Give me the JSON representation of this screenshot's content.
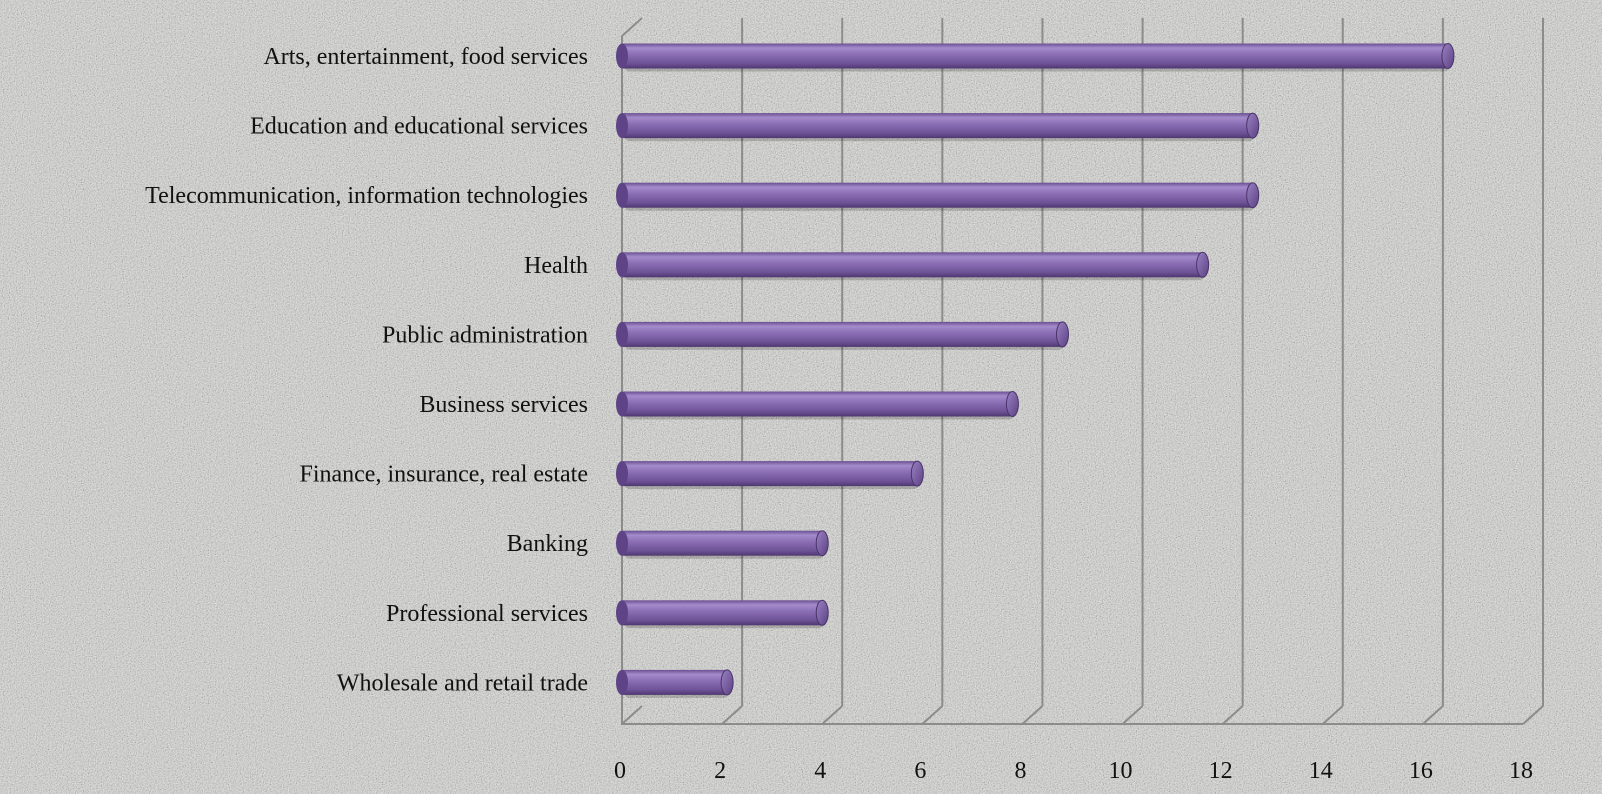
{
  "chart_data": {
    "type": "bar",
    "orientation": "horizontal",
    "categories": [
      "Arts, entertainment, food services",
      "Education and educational services",
      "Telecommunication, information technologies",
      "Health",
      "Public administration",
      "Business services",
      "Finance, insurance, real estate",
      "Banking",
      "Professional services",
      "Wholesale and retail trade"
    ],
    "values": [
      16.5,
      12.6,
      12.6,
      11.6,
      8.8,
      7.8,
      5.9,
      4.0,
      4.0,
      2.1
    ],
    "xlim": [
      0,
      18
    ],
    "xticks": [
      "0",
      "2",
      "4",
      "6",
      "8",
      "10",
      "12",
      "14",
      "16",
      "18"
    ],
    "title": "",
    "xlabel": "",
    "ylabel": "",
    "grid": true,
    "legend": "none",
    "bar_color": "#8064a2",
    "style": "3d-cylinder"
  }
}
